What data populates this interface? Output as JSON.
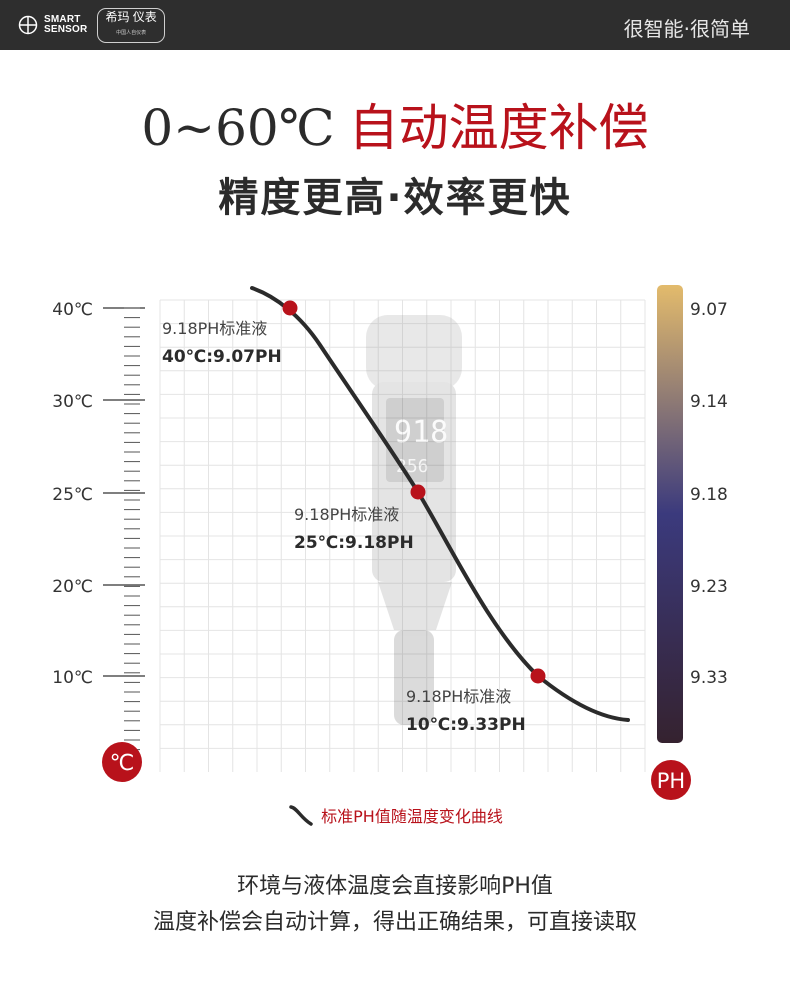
{
  "brand": {
    "logo_en_line1": "SMART",
    "logo_en_line2": "SENSOR",
    "logo_cn": "希玛 仪表",
    "logo_cn_sub": "中国人自仪表",
    "tagline": "很智能·很简单"
  },
  "headline": {
    "prefix": "0~60℃",
    "highlight": "自动温度补偿",
    "subtitle": "精度更高·效率更快"
  },
  "chart_data": {
    "type": "line",
    "y_ticks": [
      "40℃",
      "30℃",
      "25℃",
      "20℃",
      "10℃"
    ],
    "y_unit_badge": "℃",
    "scale_ticks": [
      "9.07",
      "9.14",
      "9.18",
      "9.23",
      "9.33"
    ],
    "scale_badge": "PH",
    "points": [
      {
        "temperature": 40,
        "ph": 9.07,
        "label": "9.18PH标准液",
        "value_label": "40℃:9.07PH"
      },
      {
        "temperature": 25,
        "ph": 9.18,
        "label": "9.18PH标准液",
        "value_label": "25℃:9.18PH"
      },
      {
        "temperature": 10,
        "ph": 9.33,
        "label": "9.18PH标准液",
        "value_label": "10℃:9.33PH"
      }
    ],
    "grid": true,
    "colors": {
      "curve": "#2b2b2b",
      "point": "#b8121b",
      "badge": "#b8121b",
      "scale_top": "#e3bb6c",
      "scale_mid": "#3b3a7d",
      "scale_bottom": "#35222f",
      "grid": "#e4e4e4"
    }
  },
  "caption": "标准PH值随温度变化曲线",
  "description": {
    "line1": "环境与液体温度会直接影响PH值",
    "line2": "温度补偿会自动计算，得出正确结果，可直接读取"
  }
}
